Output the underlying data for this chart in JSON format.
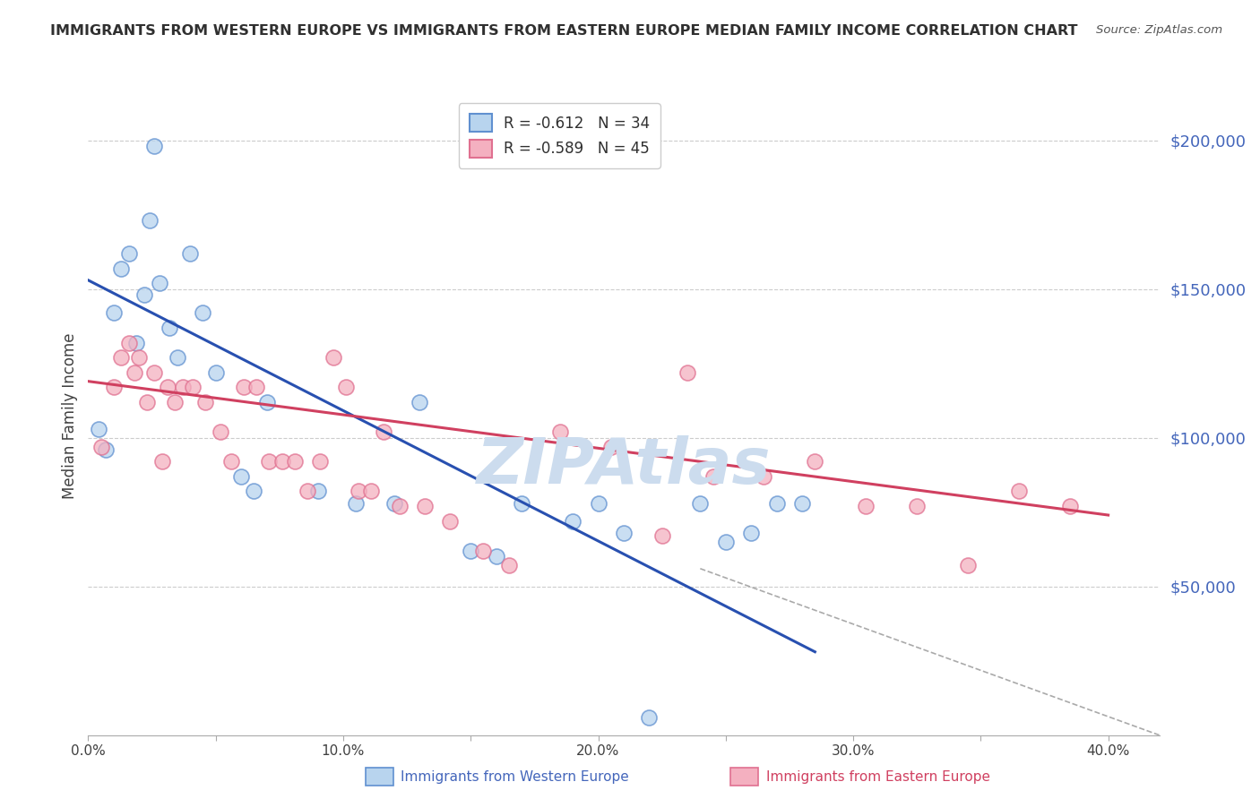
{
  "title": "IMMIGRANTS FROM WESTERN EUROPE VS IMMIGRANTS FROM EASTERN EUROPE MEDIAN FAMILY INCOME CORRELATION CHART",
  "source": "Source: ZipAtlas.com",
  "ylabel": "Median Family Income",
  "y_tick_labels": [
    "$200,000",
    "$150,000",
    "$100,000",
    "$50,000"
  ],
  "y_tick_values": [
    200000,
    150000,
    100000,
    50000
  ],
  "x_tick_values": [
    0.0,
    0.05,
    0.1,
    0.15,
    0.2,
    0.25,
    0.3,
    0.35,
    0.4
  ],
  "x_tick_labels": [
    "0.0%",
    "",
    "10.0%",
    "",
    "20.0%",
    "",
    "30.0%",
    "",
    "40.0%"
  ],
  "legend_blue_r": "R = -0.612",
  "legend_blue_n": "N = 34",
  "legend_pink_r": "R = -0.589",
  "legend_pink_n": "N = 45",
  "blue_fill": "#b8d4ee",
  "pink_fill": "#f4b0c0",
  "blue_edge": "#6090d0",
  "pink_edge": "#e07090",
  "blue_line_color": "#2850b0",
  "pink_line_color": "#d04060",
  "title_color": "#303030",
  "axis_label_color": "#4466bb",
  "watermark_color": "#ccdcee",
  "blue_scatter_x": [
    0.004,
    0.007,
    0.01,
    0.013,
    0.016,
    0.019,
    0.022,
    0.024,
    0.026,
    0.028,
    0.032,
    0.035,
    0.04,
    0.045,
    0.05,
    0.06,
    0.065,
    0.07,
    0.09,
    0.105,
    0.12,
    0.13,
    0.15,
    0.16,
    0.17,
    0.19,
    0.2,
    0.21,
    0.24,
    0.26,
    0.27,
    0.28,
    0.22,
    0.25
  ],
  "blue_scatter_y": [
    103000,
    96000,
    142000,
    157000,
    162000,
    132000,
    148000,
    173000,
    198000,
    152000,
    137000,
    127000,
    162000,
    142000,
    122000,
    87000,
    82000,
    112000,
    82000,
    78000,
    78000,
    112000,
    62000,
    60000,
    78000,
    72000,
    78000,
    68000,
    78000,
    68000,
    78000,
    78000,
    6000,
    65000
  ],
  "pink_scatter_x": [
    0.005,
    0.01,
    0.013,
    0.016,
    0.018,
    0.02,
    0.023,
    0.026,
    0.029,
    0.031,
    0.034,
    0.037,
    0.041,
    0.046,
    0.052,
    0.056,
    0.061,
    0.066,
    0.071,
    0.076,
    0.081,
    0.086,
    0.091,
    0.096,
    0.101,
    0.106,
    0.111,
    0.116,
    0.122,
    0.132,
    0.142,
    0.155,
    0.165,
    0.185,
    0.205,
    0.225,
    0.245,
    0.265,
    0.285,
    0.305,
    0.325,
    0.345,
    0.365,
    0.385,
    0.235
  ],
  "pink_scatter_y": [
    97000,
    117000,
    127000,
    132000,
    122000,
    127000,
    112000,
    122000,
    92000,
    117000,
    112000,
    117000,
    117000,
    112000,
    102000,
    92000,
    117000,
    117000,
    92000,
    92000,
    92000,
    82000,
    92000,
    127000,
    117000,
    82000,
    82000,
    102000,
    77000,
    77000,
    72000,
    62000,
    57000,
    102000,
    97000,
    67000,
    87000,
    87000,
    92000,
    77000,
    77000,
    57000,
    82000,
    77000,
    122000
  ],
  "blue_line_x": [
    0.0,
    0.285
  ],
  "blue_line_y": [
    153000,
    28000
  ],
  "pink_line_x": [
    0.0,
    0.4
  ],
  "pink_line_y": [
    119000,
    74000
  ],
  "dashed_line_x": [
    0.24,
    0.42
  ],
  "dashed_line_y": [
    56000,
    0
  ],
  "xlim": [
    0.0,
    0.42
  ],
  "ylim": [
    0,
    215000
  ],
  "figsize": [
    14.06,
    8.92
  ],
  "dpi": 100
}
